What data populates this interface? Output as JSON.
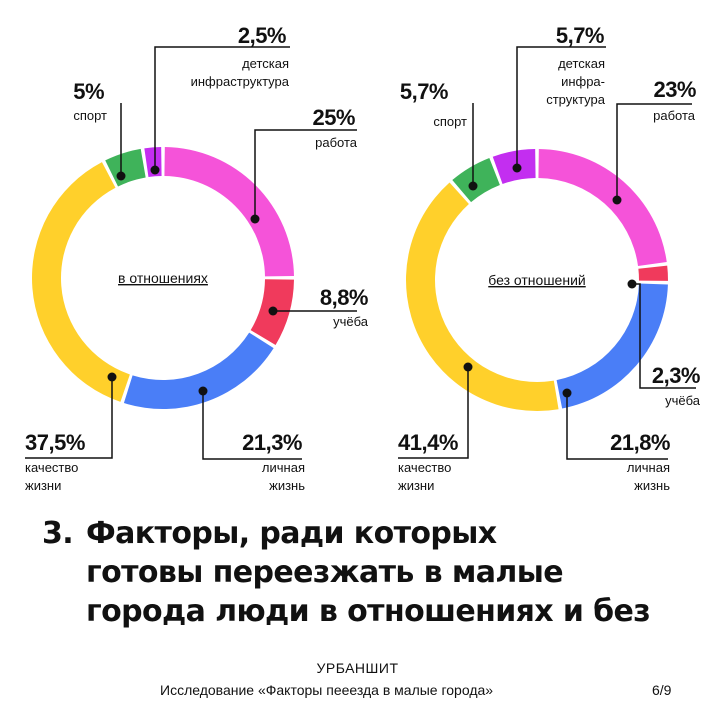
{
  "chart_data": [
    {
      "type": "donut",
      "center_label": "в отношениях",
      "segments": [
        {
          "key": "work",
          "value": 25,
          "pct_label": "25%",
          "label_lines": [
            "работа"
          ],
          "color": "#f553d9"
        },
        {
          "key": "study",
          "value": 8.8,
          "pct_label": "8,8%",
          "label_lines": [
            "учёба"
          ],
          "color": "#f03a5c"
        },
        {
          "key": "personal",
          "value": 21.3,
          "pct_label": "21,3%",
          "label_lines": [
            "личная",
            "жизнь"
          ],
          "color": "#4a7ef7"
        },
        {
          "key": "quality",
          "value": 37.5,
          "pct_label": "37,5%",
          "label_lines": [
            "качество",
            "жизни"
          ],
          "color": "#ffd02b"
        },
        {
          "key": "sport",
          "value": 5,
          "pct_label": "5%",
          "label_lines": [
            "спорт"
          ],
          "color": "#3fb35a"
        },
        {
          "key": "kids",
          "value": 2.5,
          "pct_label": "2,5%",
          "label_lines": [
            "детская",
            "инфраструктура"
          ],
          "color": "#c32ef0"
        }
      ]
    },
    {
      "type": "donut",
      "center_label": "без отношений",
      "segments": [
        {
          "key": "work",
          "value": 23,
          "pct_label": "23%",
          "label_lines": [
            "работа"
          ],
          "color": "#f553d9"
        },
        {
          "key": "study",
          "value": 2.3,
          "pct_label": "2,3%",
          "label_lines": [
            "учёба"
          ],
          "color": "#f03a5c"
        },
        {
          "key": "personal",
          "value": 21.8,
          "pct_label": "21,8%",
          "label_lines": [
            "личная",
            "жизнь"
          ],
          "color": "#4a7ef7"
        },
        {
          "key": "quality",
          "value": 41.4,
          "pct_label": "41,4%",
          "label_lines": [
            "качество",
            "жизни"
          ],
          "color": "#ffd02b"
        },
        {
          "key": "sport",
          "value": 5.7,
          "pct_label": "5,7%",
          "label_lines": [
            "спорт"
          ],
          "color": "#3fb35a"
        },
        {
          "key": "kids",
          "value": 5.7,
          "pct_label": "5,7%",
          "label_lines": [
            "детская",
            "инфра-",
            "структура"
          ],
          "color": "#c32ef0"
        }
      ]
    }
  ],
  "headline": {
    "number": "3.",
    "lines": [
      "Факторы, ради которых",
      "готовы переезжать в малые",
      "города люди в отношениях и без"
    ]
  },
  "footer": {
    "brand": "УРБАНШИТ",
    "study": "Исследование «Факторы пееезда в малые города»",
    "page": "6/9"
  }
}
